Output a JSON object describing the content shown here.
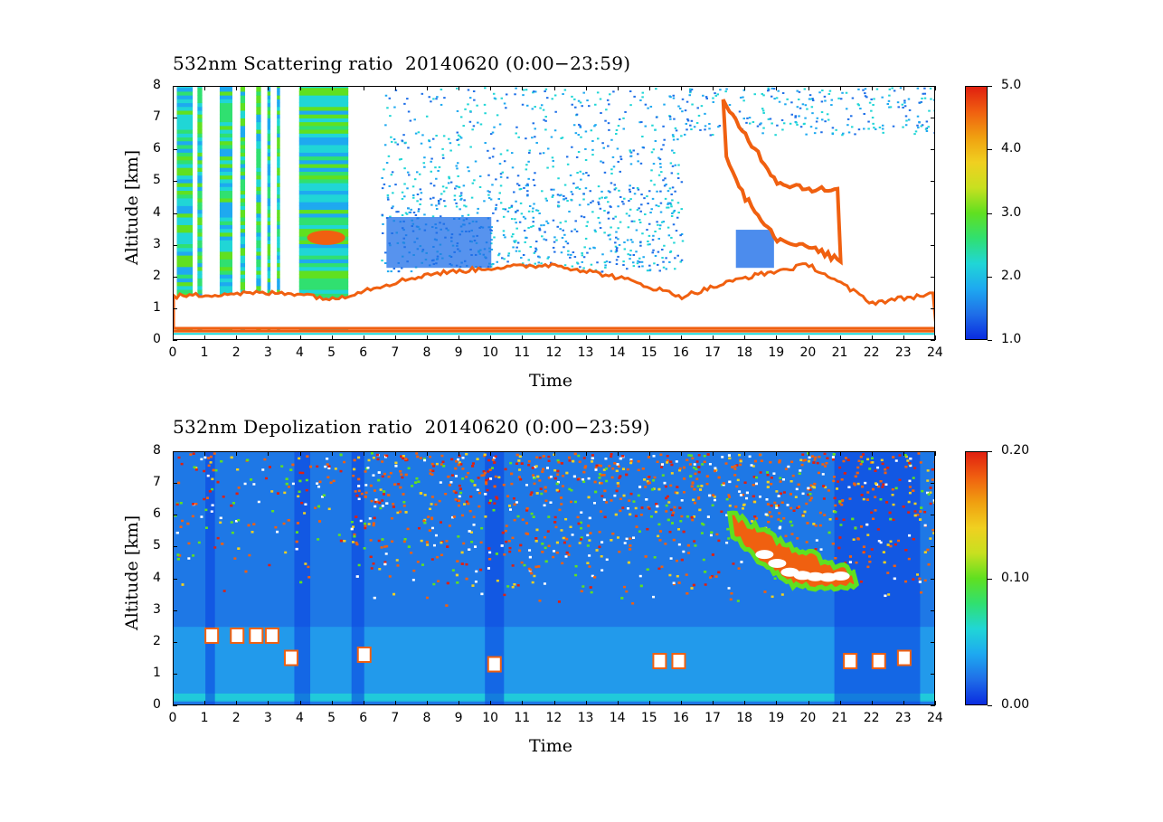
{
  "chart_data": [
    {
      "type": "heatmap",
      "title": "532nm Scattering ratio  20140620 (0:00−23:59)",
      "xlabel": "Time",
      "ylabel": "Altitude [km]",
      "xlim": [
        0,
        24
      ],
      "ylim": [
        0,
        8
      ],
      "x_ticks": [
        "0",
        "1",
        "2",
        "3",
        "4",
        "5",
        "6",
        "7",
        "8",
        "9",
        "10",
        "11",
        "12",
        "13",
        "14",
        "15",
        "16",
        "17",
        "18",
        "19",
        "20",
        "21",
        "22",
        "23",
        "24"
      ],
      "y_ticks": [
        "0",
        "1",
        "2",
        "3",
        "4",
        "5",
        "6",
        "7",
        "8"
      ],
      "colorbar": {
        "min": 1.0,
        "max": 5.0,
        "ticks": [
          "1.0",
          "2.0",
          "3.0",
          "4.0",
          "5.0"
        ]
      },
      "features": {
        "surface_layer_km": [
          0.25,
          0.35
        ],
        "boundary_layer_top_km": [
          [
            0,
            1.4
          ],
          [
            2,
            1.5
          ],
          [
            4,
            1.5
          ],
          [
            5,
            1.3
          ],
          [
            6,
            1.6
          ],
          [
            8,
            2.1
          ],
          [
            10,
            2.3
          ],
          [
            12,
            2.4
          ],
          [
            14,
            2.0
          ],
          [
            16,
            1.4
          ],
          [
            18,
            2.0
          ],
          [
            20,
            2.4
          ],
          [
            22,
            1.2
          ],
          [
            24,
            1.5
          ]
        ],
        "elevated_layer_top_km": [
          [
            17.3,
            7.5
          ],
          [
            18,
            6.5
          ],
          [
            19,
            5.0
          ],
          [
            20,
            4.8
          ],
          [
            21,
            4.7
          ]
        ],
        "elevated_layer_bottom_km": [
          [
            17.3,
            6.0
          ],
          [
            18,
            4.5
          ],
          [
            19,
            3.2
          ],
          [
            20,
            3.0
          ],
          [
            21,
            2.5
          ]
        ]
      }
    },
    {
      "type": "heatmap",
      "title": "532nm Depolization ratio  20140620 (0:00−23:59)",
      "xlabel": "Time",
      "ylabel": "Altitude [km]",
      "xlim": [
        0,
        24
      ],
      "ylim": [
        0,
        8
      ],
      "x_ticks": [
        "0",
        "1",
        "2",
        "3",
        "4",
        "5",
        "6",
        "7",
        "8",
        "9",
        "10",
        "11",
        "12",
        "13",
        "14",
        "15",
        "16",
        "17",
        "18",
        "19",
        "20",
        "21",
        "22",
        "23",
        "24"
      ],
      "y_ticks": [
        "0",
        "1",
        "2",
        "3",
        "4",
        "5",
        "6",
        "7",
        "8"
      ],
      "colorbar": {
        "min": 0.0,
        "max": 0.2,
        "ticks": [
          "0.00",
          "0.10",
          "0.20"
        ]
      },
      "features": {
        "dust_layer_top_km": [
          [
            17.5,
            6.2
          ],
          [
            18.5,
            5.5
          ],
          [
            19.5,
            5.0
          ],
          [
            20.5,
            4.6
          ],
          [
            21.5,
            4.2
          ]
        ],
        "dust_layer_bottom_km": [
          [
            17.5,
            5.5
          ],
          [
            18.5,
            4.5
          ],
          [
            19.5,
            3.8
          ],
          [
            20.5,
            3.7
          ],
          [
            21.5,
            3.8
          ]
        ],
        "high_depol_patches": [
          [
            1.2,
            2.2
          ],
          [
            2.0,
            2.2
          ],
          [
            2.6,
            2.2
          ],
          [
            3.1,
            2.2
          ],
          [
            3.7,
            1.5
          ],
          [
            6.0,
            1.6
          ],
          [
            10.1,
            1.3
          ],
          [
            15.3,
            1.4
          ],
          [
            15.9,
            1.4
          ],
          [
            21.3,
            1.4
          ],
          [
            22.2,
            1.4
          ],
          [
            23.0,
            1.5
          ]
        ]
      }
    }
  ],
  "colors": {
    "palette": [
      "#0a2ce0",
      "#1f6fe8",
      "#1ea9f0",
      "#20d6d6",
      "#30e070",
      "#60e020",
      "#c8e020",
      "#f0d020",
      "#f0a010",
      "#f06010",
      "#e02010"
    ]
  }
}
